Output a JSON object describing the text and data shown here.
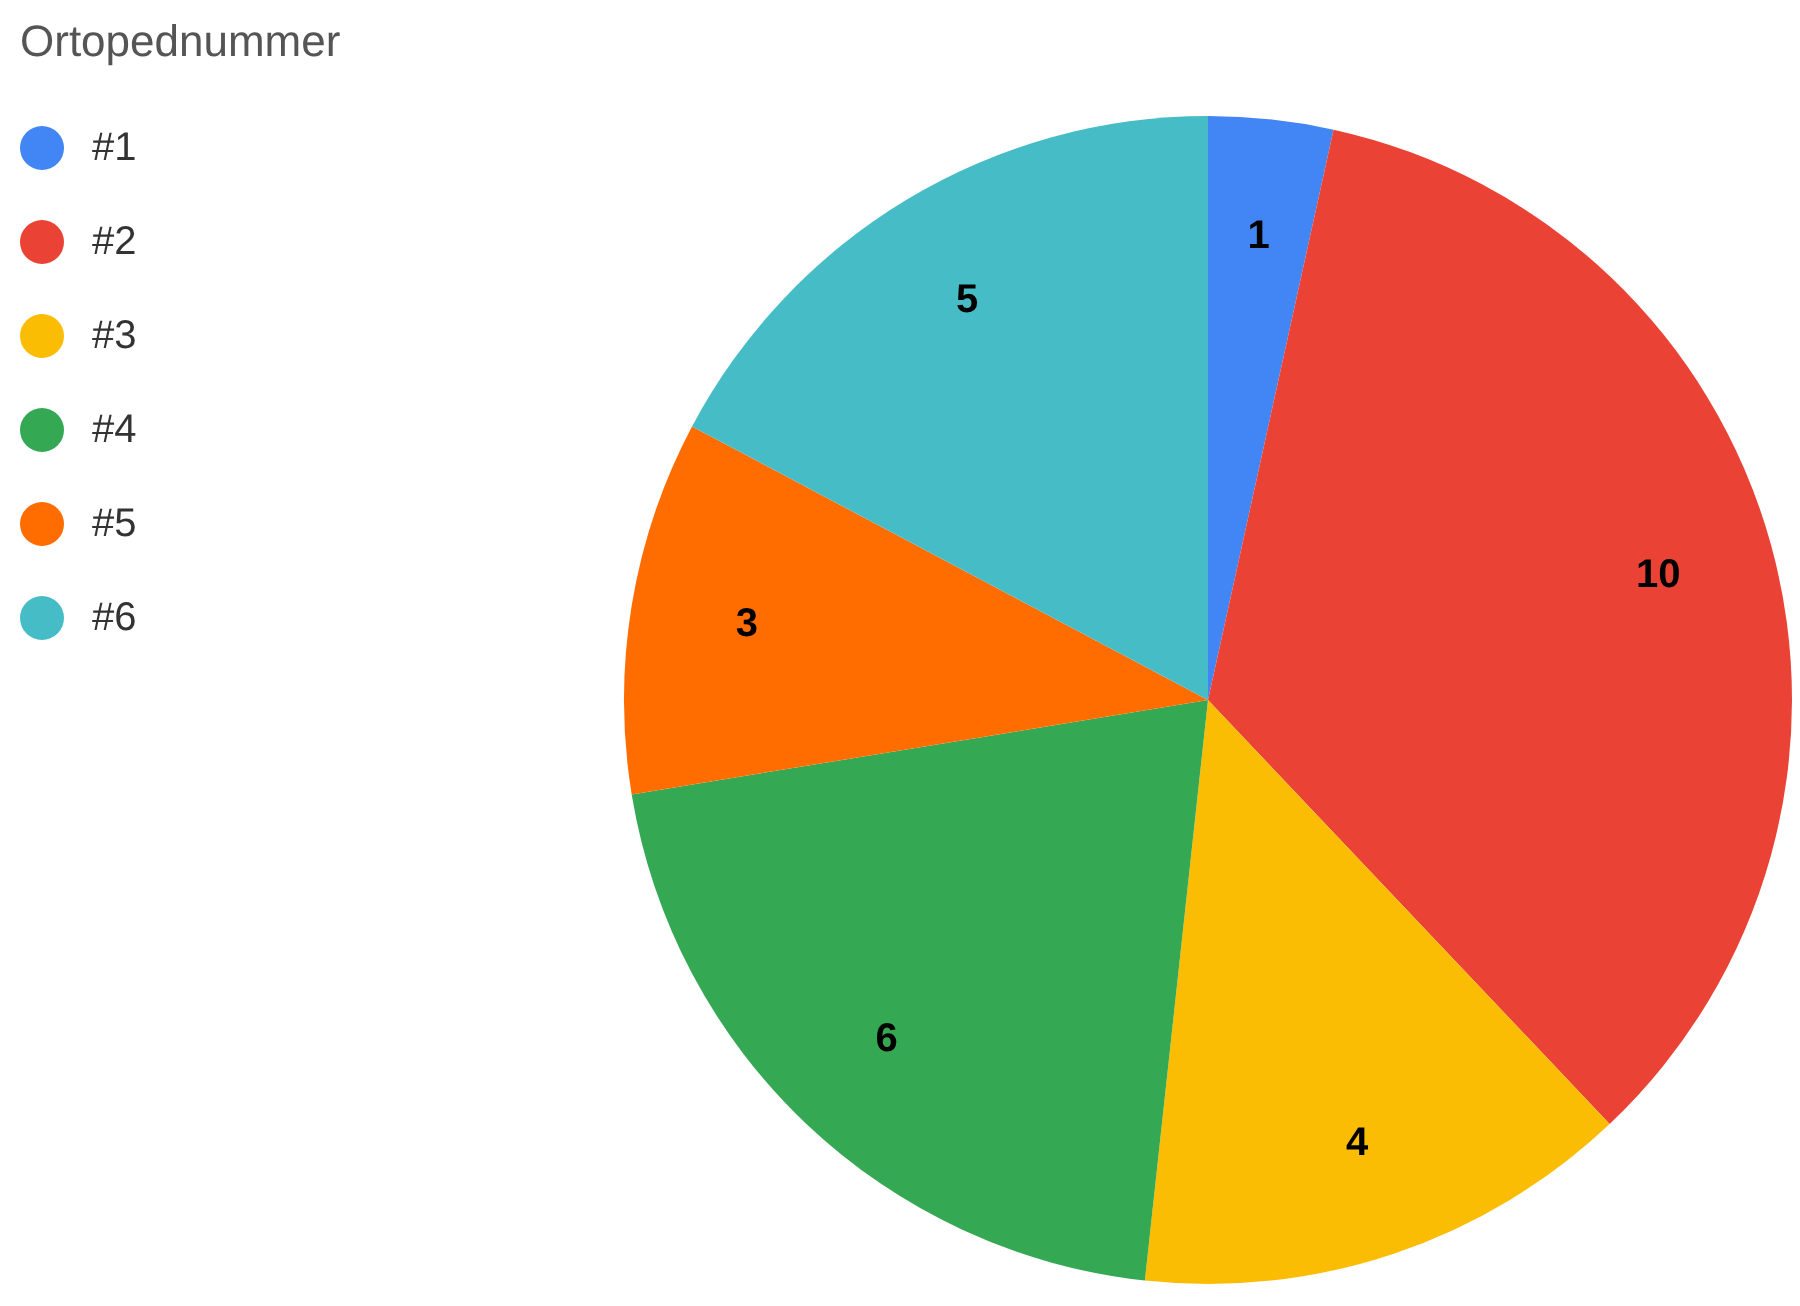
{
  "chart_data": {
    "type": "pie",
    "legend_title": "Ortopednummer",
    "legend": "top left",
    "data_labels": true,
    "categories": [
      "#1",
      "#2",
      "#3",
      "#4",
      "#5",
      "#6"
    ],
    "values": [
      1,
      10,
      4,
      6,
      3,
      5
    ],
    "colors": [
      "#4285f4",
      "#ea4335",
      "#fbbc04",
      "#34a853",
      "#ff6d01",
      "#46bdc6"
    ]
  }
}
